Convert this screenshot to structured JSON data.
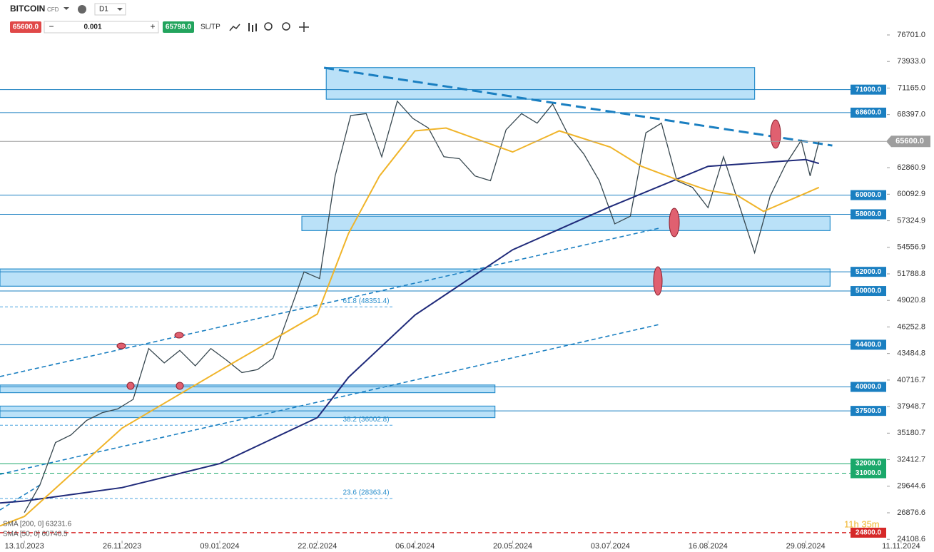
{
  "toolbar": {
    "symbol": "BITCOIN",
    "kind": "CFD",
    "timeframe": "D1",
    "bid": "65600.0",
    "volume": "0.001",
    "ask": "65798.0",
    "sltp": "SL/TP",
    "timer": "11h 35m"
  },
  "indicators": [
    "SMA [200, 0] 63231.6",
    "SMA [50, 0] 60740.5"
  ],
  "chart_data": {
    "type": "line",
    "xlim": [
      "02.10.2023",
      "21.11.2024"
    ],
    "ylim": [
      23827,
      80345
    ],
    "xticks": [
      "13.10.2023",
      "26.11.2023",
      "09.01.2024",
      "22.02.2024",
      "06.04.2024",
      "20.05.2024",
      "03.07.2024",
      "16.08.2024",
      "29.09.2024",
      "11.11.2024"
    ],
    "yticks": [
      {
        "value": 76701,
        "label": "76701.0"
      },
      {
        "value": 73933,
        "label": "73933.0"
      },
      {
        "value": 71165,
        "label": "71165.0"
      },
      {
        "value": 68397,
        "label": "68397.0"
      },
      {
        "value": 62860.9,
        "label": "62860.9"
      },
      {
        "value": 60092.9,
        "label": "60092.9"
      },
      {
        "value": 57324.9,
        "label": "57324.9"
      },
      {
        "value": 54556.9,
        "label": "54556.9"
      },
      {
        "value": 51788.8,
        "label": "51788.8"
      },
      {
        "value": 49020.8,
        "label": "49020.8"
      },
      {
        "value": 46252.8,
        "label": "46252.8"
      },
      {
        "value": 43484.8,
        "label": "43484.8"
      },
      {
        "value": 40716.7,
        "label": "40716.7"
      },
      {
        "value": 37948.7,
        "label": "37948.7"
      },
      {
        "value": 35180.7,
        "label": "35180.7"
      },
      {
        "value": 32412.7,
        "label": "32412.7"
      },
      {
        "value": 29644.6,
        "label": "29644.6"
      },
      {
        "value": 26876.6,
        "label": "26876.6"
      },
      {
        "value": 24108.6,
        "label": "24108.6"
      }
    ],
    "series": [
      {
        "name": "BITCOIN",
        "color": "#37474f",
        "x": [
          "13.10.2023",
          "20.10.2023",
          "27.10.2023",
          "03.11.2023",
          "10.11.2023",
          "17.11.2023",
          "24.11.2023",
          "01.12.2023",
          "08.12.2023",
          "15.12.2023",
          "22.12.2023",
          "29.12.2023",
          "05.01.2024",
          "12.01.2024",
          "19.01.2024",
          "26.01.2024",
          "02.02.2024",
          "09.02.2024",
          "16.02.2024",
          "23.02.2024",
          "01.03.2024",
          "08.03.2024",
          "15.03.2024",
          "22.03.2024",
          "29.03.2024",
          "05.04.2024",
          "12.04.2024",
          "19.04.2024",
          "26.04.2024",
          "03.05.2024",
          "10.05.2024",
          "17.05.2024",
          "24.05.2024",
          "31.05.2024",
          "07.06.2024",
          "14.06.2024",
          "21.06.2024",
          "28.06.2024",
          "05.07.2024",
          "12.07.2024",
          "19.07.2024",
          "26.07.2024",
          "02.08.2024",
          "09.08.2024",
          "16.08.2024",
          "23.08.2024",
          "30.08.2024",
          "06.09.2024",
          "13.09.2024",
          "20.09.2024",
          "27.09.2024",
          "01.10.2024",
          "05.10.2024"
        ],
        "values": [
          26900,
          29800,
          34200,
          35000,
          36500,
          37300,
          37700,
          38700,
          44000,
          42500,
          43800,
          42200,
          44000,
          42800,
          41500,
          41800,
          43000,
          47500,
          52000,
          51300,
          62000,
          68300,
          68500,
          64000,
          69800,
          68000,
          67000,
          64000,
          63800,
          62000,
          61500,
          66800,
          68500,
          67500,
          69500,
          66300,
          64300,
          61500,
          57000,
          57800,
          66500,
          67500,
          61500,
          60800,
          58700,
          64000,
          59000,
          54000,
          59900,
          63200,
          65700,
          62000,
          65600
        ]
      },
      {
        "name": "SMA [200, 0]",
        "color": "#1f2a7a",
        "x": [
          "02.10.2023",
          "13.10.2023",
          "26.11.2023",
          "09.01.2024",
          "22.02.2024",
          "07.03.2024",
          "06.04.2024",
          "20.05.2024",
          "03.07.2024",
          "16.08.2024",
          "29.09.2024",
          "05.10.2024"
        ],
        "values": [
          27900,
          28100,
          29500,
          32000,
          36800,
          41000,
          47500,
          54300,
          58800,
          63000,
          63700,
          63300
        ]
      },
      {
        "name": "SMA [50, 0]",
        "color": "#f0b429",
        "x": [
          "02.10.2023",
          "13.10.2023",
          "26.11.2023",
          "09.01.2024",
          "22.02.2024",
          "07.03.2024",
          "21.03.2024",
          "06.04.2024",
          "20.04.2024",
          "20.05.2024",
          "10.06.2024",
          "03.07.2024",
          "17.07.2024",
          "01.08.2024",
          "16.08.2024",
          "29.08.2024",
          "10.09.2024",
          "29.09.2024",
          "05.10.2024"
        ],
        "values": [
          25500,
          26500,
          35700,
          41700,
          47600,
          56000,
          62000,
          66700,
          67000,
          64500,
          66700,
          65000,
          63000,
          61700,
          60500,
          60000,
          58300,
          60200,
          60800
        ]
      }
    ],
    "levels": [
      {
        "value": 71000,
        "label": "71000.0",
        "color": "#1a7fc1"
      },
      {
        "value": 68600,
        "label": "68600.0",
        "color": "#1a7fc1"
      },
      {
        "value": 60000,
        "label": "60000.0",
        "color": "#1a7fc1"
      },
      {
        "value": 58000,
        "label": "58000.0",
        "color": "#1a7fc1"
      },
      {
        "value": 52000,
        "label": "52000.0",
        "color": "#1a7fc1"
      },
      {
        "value": 50000,
        "label": "50000.0",
        "color": "#1a7fc1"
      },
      {
        "value": 44400,
        "label": "44400.0",
        "color": "#1a7fc1"
      },
      {
        "value": 40000,
        "label": "40000.0",
        "color": "#1a7fc1"
      },
      {
        "value": 37500,
        "label": "37500.0",
        "color": "#1a7fc1"
      },
      {
        "value": 32000,
        "label": "32000.0",
        "color": "#1aa86a"
      },
      {
        "value": 31000,
        "label": "31000.0",
        "color": "#1aa86a",
        "dashed": true
      },
      {
        "value": 24800,
        "label": "24800.0",
        "color": "#d62828",
        "dashed": true
      }
    ],
    "current": {
      "value": 65600,
      "label": "65600.0",
      "color": "#9e9e9e"
    },
    "zones": [
      {
        "x": [
          "26.02.2024",
          "06.09.2024"
        ],
        "y": [
          70000,
          73300
        ]
      },
      {
        "x": [
          "15.02.2024",
          "10.10.2024"
        ],
        "y": [
          56300,
          57800
        ]
      },
      {
        "x": [
          "02.10.2023",
          "10.10.2024"
        ],
        "y": [
          50500,
          52300
        ]
      },
      {
        "x": [
          "02.10.2023",
          "12.05.2024"
        ],
        "y": [
          39400,
          40200
        ]
      },
      {
        "x": [
          "02.10.2023",
          "12.05.2024"
        ],
        "y": [
          36800,
          38000
        ]
      }
    ],
    "trendlines": [
      {
        "x": [
          "25.02.2024",
          "11.10.2024"
        ],
        "y": [
          73280,
          65170
        ],
        "width": 3
      },
      {
        "x": [
          "02.10.2023",
          "25.07.2024"
        ],
        "y": [
          41080,
          56550
        ],
        "width": 1.6
      },
      {
        "x": [
          "02.10.2023",
          "25.07.2024"
        ],
        "y": [
          30890,
          46510
        ],
        "width": 1.6
      },
      {
        "x": [
          "02.10.2023",
          "20.10.2023"
        ],
        "y": [
          27170,
          29770
        ],
        "width": 1.6
      }
    ],
    "fibs": [
      {
        "value": 48351.4,
        "label": "61.8 (48351.4)"
      },
      {
        "value": 36002.8,
        "label": "38.2 (36002.8)"
      },
      {
        "value": 28363.4,
        "label": "23.6 (28363.4)"
      }
    ]
  }
}
